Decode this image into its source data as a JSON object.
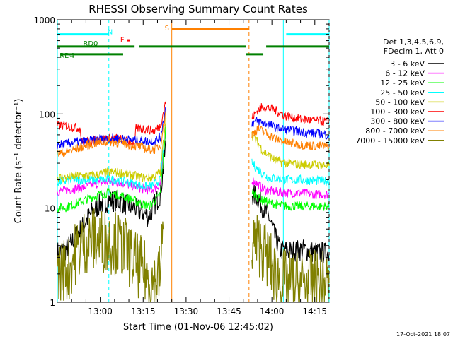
{
  "chart_data": {
    "type": "line",
    "title": "RHESSI Observing Summary Count Rates",
    "xlabel": "Start Time (01-Nov-06 12:45:02)",
    "ylabel": "Count Rate (s⁻¹ detector⁻¹)",
    "yscale": "log",
    "ylim": [
      1,
      1000
    ],
    "xlim_minutes": [
      0,
      95
    ],
    "x_ticks": [
      {
        "label": "13:00",
        "minute": 15
      },
      {
        "label": "13:15",
        "minute": 30
      },
      {
        "label": "13:30",
        "minute": 45
      },
      {
        "label": "13:45",
        "minute": 60
      },
      {
        "label": "14:00",
        "minute": 75
      },
      {
        "label": "14:15",
        "minute": 90
      }
    ],
    "y_ticks": [
      {
        "label": "1",
        "value": 1
      },
      {
        "label": "10",
        "value": 10
      },
      {
        "label": "100",
        "value": 100
      },
      {
        "label": "1000",
        "value": 1000
      }
    ],
    "legend_header": [
      "Det 1,3,4,5,6,9,",
      "FDecim 1, Att 0"
    ],
    "legend_position": "right",
    "series": [
      {
        "name": "3 - 6 keV",
        "color": "#000000",
        "points": [
          [
            0,
            3.4
          ],
          [
            3,
            3.6
          ],
          [
            6,
            4.8
          ],
          [
            9,
            6.5
          ],
          [
            12,
            9
          ],
          [
            15,
            11
          ],
          [
            18,
            12
          ],
          [
            21,
            12
          ],
          [
            24,
            11
          ],
          [
            27,
            10
          ],
          [
            30,
            9
          ],
          [
            32,
            8
          ],
          [
            34,
            11
          ],
          [
            36,
            14
          ],
          [
            38,
            50
          ],
          [
            68,
            14
          ],
          [
            70,
            13
          ],
          [
            72,
            10
          ],
          [
            74,
            8
          ],
          [
            76,
            5
          ],
          [
            78,
            3.6
          ],
          [
            82,
            3.5
          ],
          [
            86,
            3.6
          ],
          [
            90,
            3.4
          ],
          [
            95,
            3.3
          ]
        ]
      },
      {
        "name": "6 - 12 keV",
        "color": "#ff00ff",
        "points": [
          [
            0,
            15
          ],
          [
            3,
            15.5
          ],
          [
            6,
            16
          ],
          [
            9,
            16.5
          ],
          [
            12,
            17.5
          ],
          [
            15,
            18.5
          ],
          [
            18,
            19
          ],
          [
            21,
            19
          ],
          [
            24,
            18
          ],
          [
            27,
            17
          ],
          [
            30,
            16
          ],
          [
            32,
            15.5
          ],
          [
            34,
            16
          ],
          [
            36,
            18
          ],
          [
            38,
            70
          ],
          [
            68,
            20
          ],
          [
            70,
            18
          ],
          [
            72,
            16
          ],
          [
            74,
            15
          ],
          [
            76,
            15
          ],
          [
            80,
            14.5
          ],
          [
            85,
            14.5
          ],
          [
            90,
            14
          ],
          [
            95,
            14
          ]
        ]
      },
      {
        "name": "12 - 25 keV",
        "color": "#00ff00",
        "points": [
          [
            0,
            10
          ],
          [
            3,
            10.2
          ],
          [
            6,
            11
          ],
          [
            9,
            12
          ],
          [
            12,
            13
          ],
          [
            15,
            14
          ],
          [
            18,
            14.5
          ],
          [
            21,
            14
          ],
          [
            24,
            13
          ],
          [
            27,
            12
          ],
          [
            30,
            11
          ],
          [
            32,
            10.5
          ],
          [
            34,
            12
          ],
          [
            36,
            14
          ],
          [
            38,
            80
          ],
          [
            68,
            15
          ],
          [
            70,
            13
          ],
          [
            72,
            12
          ],
          [
            74,
            11.5
          ],
          [
            76,
            11
          ],
          [
            80,
            10.5
          ],
          [
            85,
            10.5
          ],
          [
            90,
            10.5
          ],
          [
            95,
            10.5
          ]
        ]
      },
      {
        "name": "25 - 50 keV",
        "color": "#00ffff",
        "points": [
          [
            0,
            19
          ],
          [
            3,
            19.5
          ],
          [
            6,
            20
          ],
          [
            9,
            20
          ],
          [
            12,
            20
          ],
          [
            15,
            20
          ],
          [
            18,
            20
          ],
          [
            21,
            20
          ],
          [
            24,
            19
          ],
          [
            27,
            18
          ],
          [
            30,
            17
          ],
          [
            32,
            17
          ],
          [
            34,
            18
          ],
          [
            36,
            20
          ],
          [
            38,
            90
          ],
          [
            68,
            30
          ],
          [
            70,
            26
          ],
          [
            72,
            23
          ],
          [
            74,
            21
          ],
          [
            76,
            21
          ],
          [
            80,
            20
          ],
          [
            85,
            20
          ],
          [
            90,
            19.5
          ],
          [
            95,
            19.5
          ]
        ]
      },
      {
        "name": "50 - 100 keV",
        "color": "#cccc00",
        "points": [
          [
            0,
            21
          ],
          [
            3,
            21
          ],
          [
            6,
            22
          ],
          [
            9,
            22
          ],
          [
            12,
            22
          ],
          [
            15,
            23
          ],
          [
            18,
            24
          ],
          [
            21,
            24
          ],
          [
            24,
            23
          ],
          [
            27,
            22
          ],
          [
            30,
            21
          ],
          [
            32,
            21
          ],
          [
            34,
            22
          ],
          [
            36,
            24
          ],
          [
            38,
            100
          ],
          [
            68,
            60
          ],
          [
            70,
            50
          ],
          [
            72,
            40
          ],
          [
            74,
            36
          ],
          [
            76,
            32
          ],
          [
            80,
            30
          ],
          [
            85,
            29
          ],
          [
            90,
            29
          ],
          [
            95,
            28
          ]
        ]
      },
      {
        "name": "100 - 300 keV",
        "color": "#ff0000",
        "points": [
          [
            0,
            75
          ],
          [
            3,
            75
          ],
          [
            6,
            72
          ],
          [
            8,
            70
          ],
          [
            8.5,
            50
          ],
          [
            10,
            50
          ],
          [
            12,
            52
          ],
          [
            15,
            54
          ],
          [
            18,
            55
          ],
          [
            21,
            55
          ],
          [
            24,
            52
          ],
          [
            27,
            50
          ],
          [
            27.5,
            70
          ],
          [
            30,
            70
          ],
          [
            32,
            68
          ],
          [
            34,
            66
          ],
          [
            36,
            75
          ],
          [
            38,
            140
          ],
          [
            68,
            90
          ],
          [
            70,
            110
          ],
          [
            72,
            120
          ],
          [
            74,
            115
          ],
          [
            76,
            110
          ],
          [
            80,
            95
          ],
          [
            85,
            88
          ],
          [
            90,
            85
          ],
          [
            95,
            82
          ]
        ]
      },
      {
        "name": "300 - 800 keV",
        "color": "#0000ff",
        "points": [
          [
            0,
            47
          ],
          [
            3,
            48
          ],
          [
            6,
            50
          ],
          [
            9,
            51
          ],
          [
            12,
            52
          ],
          [
            15,
            54
          ],
          [
            18,
            55
          ],
          [
            21,
            55
          ],
          [
            24,
            54
          ],
          [
            27,
            52
          ],
          [
            30,
            52
          ],
          [
            32,
            51
          ],
          [
            34,
            52
          ],
          [
            36,
            56
          ],
          [
            38,
            120
          ],
          [
            68,
            80
          ],
          [
            70,
            85
          ],
          [
            72,
            80
          ],
          [
            74,
            78
          ],
          [
            76,
            72
          ],
          [
            80,
            68
          ],
          [
            85,
            65
          ],
          [
            90,
            62
          ],
          [
            95,
            60
          ]
        ]
      },
      {
        "name": "800 - 7000 keV",
        "color": "#ff8000",
        "points": [
          [
            0,
            38
          ],
          [
            3,
            39
          ],
          [
            6,
            42
          ],
          [
            9,
            45
          ],
          [
            12,
            48
          ],
          [
            15,
            50
          ],
          [
            18,
            51
          ],
          [
            21,
            50
          ],
          [
            24,
            48
          ],
          [
            27,
            46
          ],
          [
            30,
            44
          ],
          [
            32,
            42
          ],
          [
            34,
            42
          ],
          [
            36,
            46
          ],
          [
            38,
            110
          ],
          [
            68,
            60
          ],
          [
            70,
            70
          ],
          [
            72,
            65
          ],
          [
            74,
            60
          ],
          [
            76,
            55
          ],
          [
            80,
            50
          ],
          [
            85,
            47
          ],
          [
            90,
            46
          ],
          [
            95,
            45
          ]
        ]
      },
      {
        "name": "7000 - 15000 keV",
        "color": "#808000",
        "points": [
          [
            0,
            2.0
          ],
          [
            2,
            2.3
          ],
          [
            4,
            2.2
          ],
          [
            6,
            3.2
          ],
          [
            9,
            4.4
          ],
          [
            12,
            4.6
          ],
          [
            15,
            4.6
          ],
          [
            18,
            4.5
          ],
          [
            21,
            4.2
          ],
          [
            24,
            3.6
          ],
          [
            27,
            2.6
          ],
          [
            30,
            2.2
          ],
          [
            32,
            1.8
          ],
          [
            34,
            1.6
          ],
          [
            36,
            2.0
          ],
          [
            37,
            6
          ],
          [
            68,
            4.5
          ],
          [
            70,
            4.2
          ],
          [
            72,
            3.6
          ],
          [
            74,
            2.8
          ],
          [
            76,
            2.0
          ],
          [
            80,
            1.6
          ],
          [
            85,
            1.6
          ],
          [
            90,
            1.6
          ],
          [
            95,
            1.6
          ]
        ]
      }
    ],
    "annotations": {
      "flags": [
        {
          "label": "N",
          "color": "#00ffff",
          "intervals": [
            [
              0,
              18
            ],
            [
              80,
              95
            ]
          ],
          "level": 700
        },
        {
          "label": "RD0",
          "color": "#008000",
          "intervals": [
            [
              0,
              27
            ],
            [
              28.5,
              66
            ],
            [
              73,
              95
            ]
          ],
          "level": 520
        },
        {
          "label": "RD4",
          "color": "#008000",
          "intervals": [
            [
              1,
              23
            ],
            [
              66,
              72
            ]
          ],
          "level": 430
        },
        {
          "label": "S",
          "color": "#ff8000",
          "intervals": [
            [
              40,
              67
            ]
          ],
          "level": 800
        },
        {
          "label": "F",
          "color": "#ff0000",
          "intervals": [],
          "level": 600
        }
      ],
      "vertical_lines": [
        {
          "minute": 0,
          "color": "#00ffff",
          "style": "solid"
        },
        {
          "minute": 18,
          "color": "#00ffff",
          "style": "dashed"
        },
        {
          "minute": 79,
          "color": "#00ffff",
          "style": "solid"
        },
        {
          "minute": 95,
          "color": "#00ffff",
          "style": "dashed"
        },
        {
          "minute": 40,
          "color": "#ff8000",
          "style": "solid"
        },
        {
          "minute": 67,
          "color": "#ff8000",
          "style": "dashed"
        }
      ]
    },
    "footer_timestamp": "17-Oct-2021 18:07",
    "grid": false
  }
}
